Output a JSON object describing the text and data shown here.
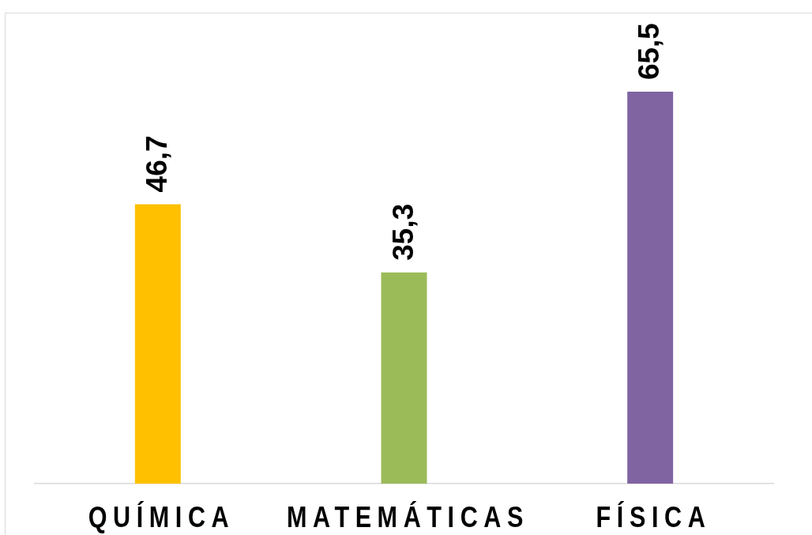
{
  "chart_data": {
    "type": "bar",
    "categories": [
      "QUÍMICA",
      "MATEMÁTICAS",
      "FÍSICA"
    ],
    "values": [
      46.7,
      35.3,
      65.5
    ],
    "colors": [
      "#ffc000",
      "#9bbb59",
      "#8064a2"
    ],
    "value_labels": [
      "46,7",
      "35,3",
      "65,5"
    ],
    "tick_labels": "x"
  }
}
